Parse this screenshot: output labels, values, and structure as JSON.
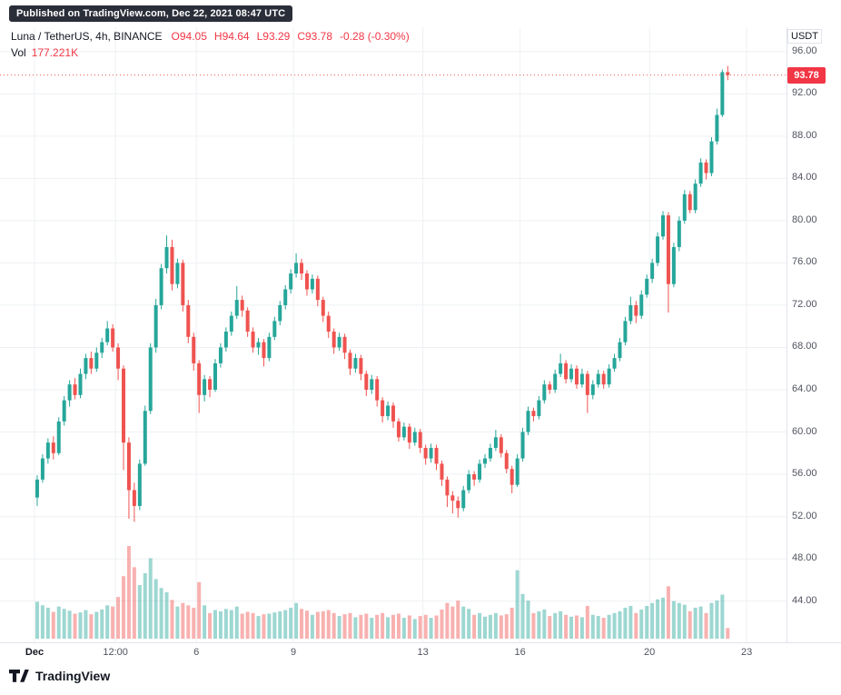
{
  "badge": {
    "text": "Published on TradingView.com, Dec 22, 2021 08:47 UTC"
  },
  "legend": {
    "symbol": "Luna / TetherUS, 4h, BINANCE",
    "ohlc_parts": [
      "O94.05",
      "H94.64",
      "L93.29",
      "C93.78",
      "-0.28 (-0.30%)"
    ],
    "volume_label": "Vol",
    "volume_value": "177.221K"
  },
  "price_axis": {
    "currency": "USDT",
    "ticks": [
      96,
      92,
      88,
      84,
      80,
      76,
      72,
      68,
      64,
      60,
      56,
      52,
      48,
      44
    ],
    "last_price_label": "93.78"
  },
  "time_axis": {
    "ticks": [
      {
        "label": "Dec",
        "t": 0
      },
      {
        "label": "12:00",
        "t": 2.5
      },
      {
        "label": "6",
        "t": 5
      },
      {
        "label": "9",
        "t": 8
      },
      {
        "label": "13",
        "t": 12
      },
      {
        "label": "16",
        "t": 15
      },
      {
        "label": "20",
        "t": 19
      },
      {
        "label": "23",
        "t": 22
      }
    ]
  },
  "footer": {
    "brand": "TradingView"
  },
  "colors": {
    "up": "#26a69a",
    "down": "#ef5350",
    "red_text": "#f23645",
    "grid": "#eef0f3",
    "axis_border": "#e0e3eb",
    "axis_text": "#50535e",
    "text_dark": "#131722",
    "badge_bg": "#2a2e39"
  },
  "chart_data": {
    "type": "candlestick",
    "title": "Luna / TetherUS, 4h, BINANCE",
    "interval": "4h",
    "exchange": "BINANCE",
    "columns": [
      "open",
      "high",
      "low",
      "close",
      "volume_k"
    ],
    "ylim": [
      40.1,
      98.3
    ],
    "volume_ylim_k": [
      0,
      1600
    ],
    "last": {
      "open": 94.05,
      "high": 94.64,
      "low": 93.29,
      "close": 93.78,
      "volume_k": 177.221,
      "change": -0.28,
      "change_pct": -0.3
    },
    "candles": [
      [
        53.8,
        55.9,
        53.0,
        55.5,
        620
      ],
      [
        55.5,
        57.9,
        55.2,
        57.5,
        560
      ],
      [
        57.5,
        59.4,
        57.0,
        59.0,
        520
      ],
      [
        59.0,
        59.6,
        57.4,
        58.0,
        450
      ],
      [
        58.0,
        61.4,
        57.8,
        61.0,
        540
      ],
      [
        61.0,
        63.4,
        60.6,
        63.0,
        500
      ],
      [
        63.0,
        64.9,
        62.4,
        64.5,
        470
      ],
      [
        64.5,
        65.1,
        63.1,
        63.5,
        420
      ],
      [
        63.5,
        66.0,
        63.2,
        65.5,
        440
      ],
      [
        65.5,
        67.4,
        65.0,
        67.0,
        480
      ],
      [
        67.0,
        67.6,
        65.5,
        66.0,
        410
      ],
      [
        66.0,
        68.0,
        65.7,
        67.5,
        450
      ],
      [
        67.5,
        68.9,
        67.0,
        68.5,
        490
      ],
      [
        68.5,
        70.5,
        68.2,
        69.8,
        560
      ],
      [
        69.8,
        70.2,
        67.6,
        68.0,
        540
      ],
      [
        68.0,
        68.4,
        64.9,
        66.0,
        700
      ],
      [
        66.0,
        66.3,
        56.4,
        59.0,
        1050
      ],
      [
        59.0,
        59.5,
        51.8,
        54.5,
        1556
      ],
      [
        54.5,
        55.2,
        51.5,
        53.0,
        1200
      ],
      [
        53.0,
        57.4,
        52.6,
        57.0,
        900
      ],
      [
        57.0,
        62.5,
        56.8,
        62.0,
        1100
      ],
      [
        62.0,
        68.4,
        61.7,
        68.0,
        1350
      ],
      [
        68.0,
        72.6,
        67.5,
        72.0,
        1000
      ],
      [
        72.0,
        75.9,
        71.6,
        75.5,
        850
      ],
      [
        75.5,
        78.6,
        75.0,
        77.5,
        780
      ],
      [
        77.5,
        78.2,
        73.4,
        74.0,
        650
      ],
      [
        74.0,
        76.4,
        73.6,
        76.0,
        540
      ],
      [
        76.0,
        76.3,
        71.4,
        72.0,
        600
      ],
      [
        72.0,
        72.5,
        68.4,
        69.0,
        560
      ],
      [
        69.0,
        69.4,
        65.8,
        66.5,
        520
      ],
      [
        66.5,
        66.8,
        61.8,
        63.5,
        950
      ],
      [
        63.5,
        65.4,
        62.9,
        65.0,
        560
      ],
      [
        65.0,
        65.3,
        63.3,
        64.0,
        430
      ],
      [
        64.0,
        66.9,
        63.8,
        66.5,
        480
      ],
      [
        66.5,
        68.4,
        66.1,
        68.0,
        460
      ],
      [
        68.0,
        69.9,
        67.6,
        69.5,
        500
      ],
      [
        69.5,
        71.4,
        69.1,
        71.0,
        480
      ],
      [
        71.0,
        73.8,
        70.7,
        72.5,
        540
      ],
      [
        72.5,
        72.9,
        70.9,
        71.5,
        420
      ],
      [
        71.5,
        71.8,
        69.0,
        69.5,
        450
      ],
      [
        69.5,
        69.9,
        67.5,
        68.0,
        430
      ],
      [
        68.0,
        68.9,
        67.3,
        68.5,
        380
      ],
      [
        68.5,
        68.8,
        66.2,
        67.0,
        410
      ],
      [
        67.0,
        69.4,
        66.7,
        69.0,
        420
      ],
      [
        69.0,
        70.9,
        68.7,
        70.5,
        440
      ],
      [
        70.5,
        72.4,
        70.1,
        72.0,
        460
      ],
      [
        72.0,
        73.9,
        71.6,
        73.5,
        480
      ],
      [
        73.5,
        75.4,
        73.1,
        75.0,
        520
      ],
      [
        75.0,
        76.9,
        74.6,
        76.0,
        600
      ],
      [
        76.0,
        76.4,
        74.4,
        75.0,
        500
      ],
      [
        75.0,
        75.3,
        72.9,
        73.5,
        470
      ],
      [
        73.5,
        74.9,
        73.1,
        74.5,
        400
      ],
      [
        74.5,
        74.8,
        71.9,
        72.5,
        450
      ],
      [
        72.5,
        72.8,
        70.4,
        71.0,
        460
      ],
      [
        71.0,
        71.4,
        68.9,
        69.5,
        480
      ],
      [
        69.5,
        69.8,
        67.4,
        68.0,
        430
      ],
      [
        68.0,
        69.4,
        67.7,
        69.0,
        380
      ],
      [
        69.0,
        69.3,
        66.9,
        67.5,
        410
      ],
      [
        67.5,
        67.8,
        65.4,
        66.0,
        430
      ],
      [
        66.0,
        67.4,
        65.6,
        67.0,
        360
      ],
      [
        67.0,
        67.3,
        64.9,
        65.5,
        400
      ],
      [
        65.5,
        65.8,
        63.4,
        64.0,
        420
      ],
      [
        64.0,
        65.4,
        63.6,
        65.0,
        350
      ],
      [
        65.0,
        65.3,
        62.4,
        63.0,
        400
      ],
      [
        63.0,
        63.3,
        60.9,
        61.5,
        430
      ],
      [
        61.5,
        62.9,
        61.1,
        62.5,
        360
      ],
      [
        62.5,
        62.8,
        60.4,
        61.0,
        400
      ],
      [
        61.0,
        61.3,
        59.1,
        59.5,
        420
      ],
      [
        59.5,
        60.9,
        59.2,
        60.5,
        350
      ],
      [
        60.5,
        60.8,
        58.4,
        59.0,
        390
      ],
      [
        59.0,
        60.4,
        58.7,
        60.0,
        330
      ],
      [
        60.0,
        60.3,
        58.0,
        58.5,
        380
      ],
      [
        58.5,
        58.8,
        56.9,
        57.5,
        400
      ],
      [
        57.5,
        58.9,
        57.1,
        58.5,
        350
      ],
      [
        58.5,
        58.8,
        56.4,
        57.0,
        390
      ],
      [
        57.0,
        57.3,
        54.9,
        55.5,
        490
      ],
      [
        55.5,
        55.8,
        52.9,
        54.0,
        600
      ],
      [
        54.0,
        54.4,
        52.3,
        53.5,
        540
      ],
      [
        53.5,
        53.9,
        51.9,
        52.8,
        640
      ],
      [
        52.8,
        54.9,
        52.5,
        54.5,
        540
      ],
      [
        54.5,
        56.4,
        54.2,
        56.0,
        500
      ],
      [
        56.0,
        56.3,
        54.9,
        55.5,
        400
      ],
      [
        55.5,
        57.4,
        55.2,
        57.0,
        430
      ],
      [
        57.0,
        57.9,
        56.6,
        57.5,
        370
      ],
      [
        57.5,
        58.9,
        57.2,
        58.5,
        400
      ],
      [
        58.5,
        60.2,
        58.2,
        59.5,
        430
      ],
      [
        59.5,
        59.8,
        57.6,
        58.0,
        390
      ],
      [
        58.0,
        58.3,
        56.1,
        56.5,
        410
      ],
      [
        56.5,
        56.8,
        54.2,
        55.0,
        520
      ],
      [
        55.0,
        57.9,
        54.8,
        57.5,
        1150
      ],
      [
        57.5,
        60.4,
        57.2,
        60.0,
        750
      ],
      [
        60.0,
        62.4,
        59.7,
        62.0,
        640
      ],
      [
        62.0,
        62.3,
        61.0,
        61.5,
        430
      ],
      [
        61.5,
        63.4,
        61.2,
        63.0,
        460
      ],
      [
        63.0,
        64.9,
        62.7,
        64.5,
        490
      ],
      [
        64.5,
        64.8,
        63.6,
        64.0,
        380
      ],
      [
        64.0,
        65.9,
        63.7,
        65.5,
        430
      ],
      [
        65.5,
        67.4,
        65.2,
        66.5,
        460
      ],
      [
        66.5,
        66.8,
        64.6,
        65.0,
        400
      ],
      [
        65.0,
        66.4,
        64.7,
        66.0,
        370
      ],
      [
        66.0,
        66.3,
        64.1,
        64.5,
        390
      ],
      [
        64.5,
        66.0,
        64.2,
        65.5,
        360
      ],
      [
        65.5,
        65.8,
        61.8,
        63.5,
        550
      ],
      [
        63.5,
        64.9,
        63.1,
        64.5,
        400
      ],
      [
        64.5,
        65.9,
        64.2,
        65.5,
        380
      ],
      [
        65.5,
        65.8,
        64.1,
        64.5,
        350
      ],
      [
        64.5,
        66.4,
        64.2,
        66.0,
        400
      ],
      [
        66.0,
        67.4,
        65.7,
        67.0,
        430
      ],
      [
        67.0,
        68.9,
        66.7,
        68.5,
        460
      ],
      [
        68.5,
        70.9,
        68.2,
        70.5,
        520
      ],
      [
        70.5,
        72.8,
        70.2,
        72.0,
        550
      ],
      [
        72.0,
        72.4,
        70.3,
        71.0,
        430
      ],
      [
        71.0,
        73.4,
        70.7,
        73.0,
        490
      ],
      [
        73.0,
        74.9,
        72.7,
        74.5,
        550
      ],
      [
        74.5,
        76.4,
        74.1,
        76.0,
        600
      ],
      [
        76.0,
        78.9,
        75.7,
        78.5,
        660
      ],
      [
        78.5,
        80.9,
        78.2,
        80.5,
        690
      ],
      [
        80.5,
        80.8,
        71.3,
        74.0,
        880
      ],
      [
        74.0,
        77.9,
        73.7,
        77.5,
        630
      ],
      [
        77.5,
        80.4,
        77.1,
        80.0,
        600
      ],
      [
        80.0,
        82.9,
        79.7,
        82.5,
        570
      ],
      [
        82.5,
        82.8,
        80.7,
        81.0,
        460
      ],
      [
        81.0,
        83.9,
        80.7,
        83.5,
        520
      ],
      [
        83.5,
        85.9,
        83.2,
        85.5,
        540
      ],
      [
        85.5,
        85.8,
        83.9,
        84.5,
        430
      ],
      [
        84.5,
        87.9,
        84.2,
        87.5,
        600
      ],
      [
        87.5,
        90.6,
        87.2,
        90.0,
        640
      ],
      [
        90.0,
        94.3,
        89.8,
        94.05,
        740
      ],
      [
        94.05,
        94.64,
        93.29,
        93.78,
        177.221
      ]
    ]
  }
}
